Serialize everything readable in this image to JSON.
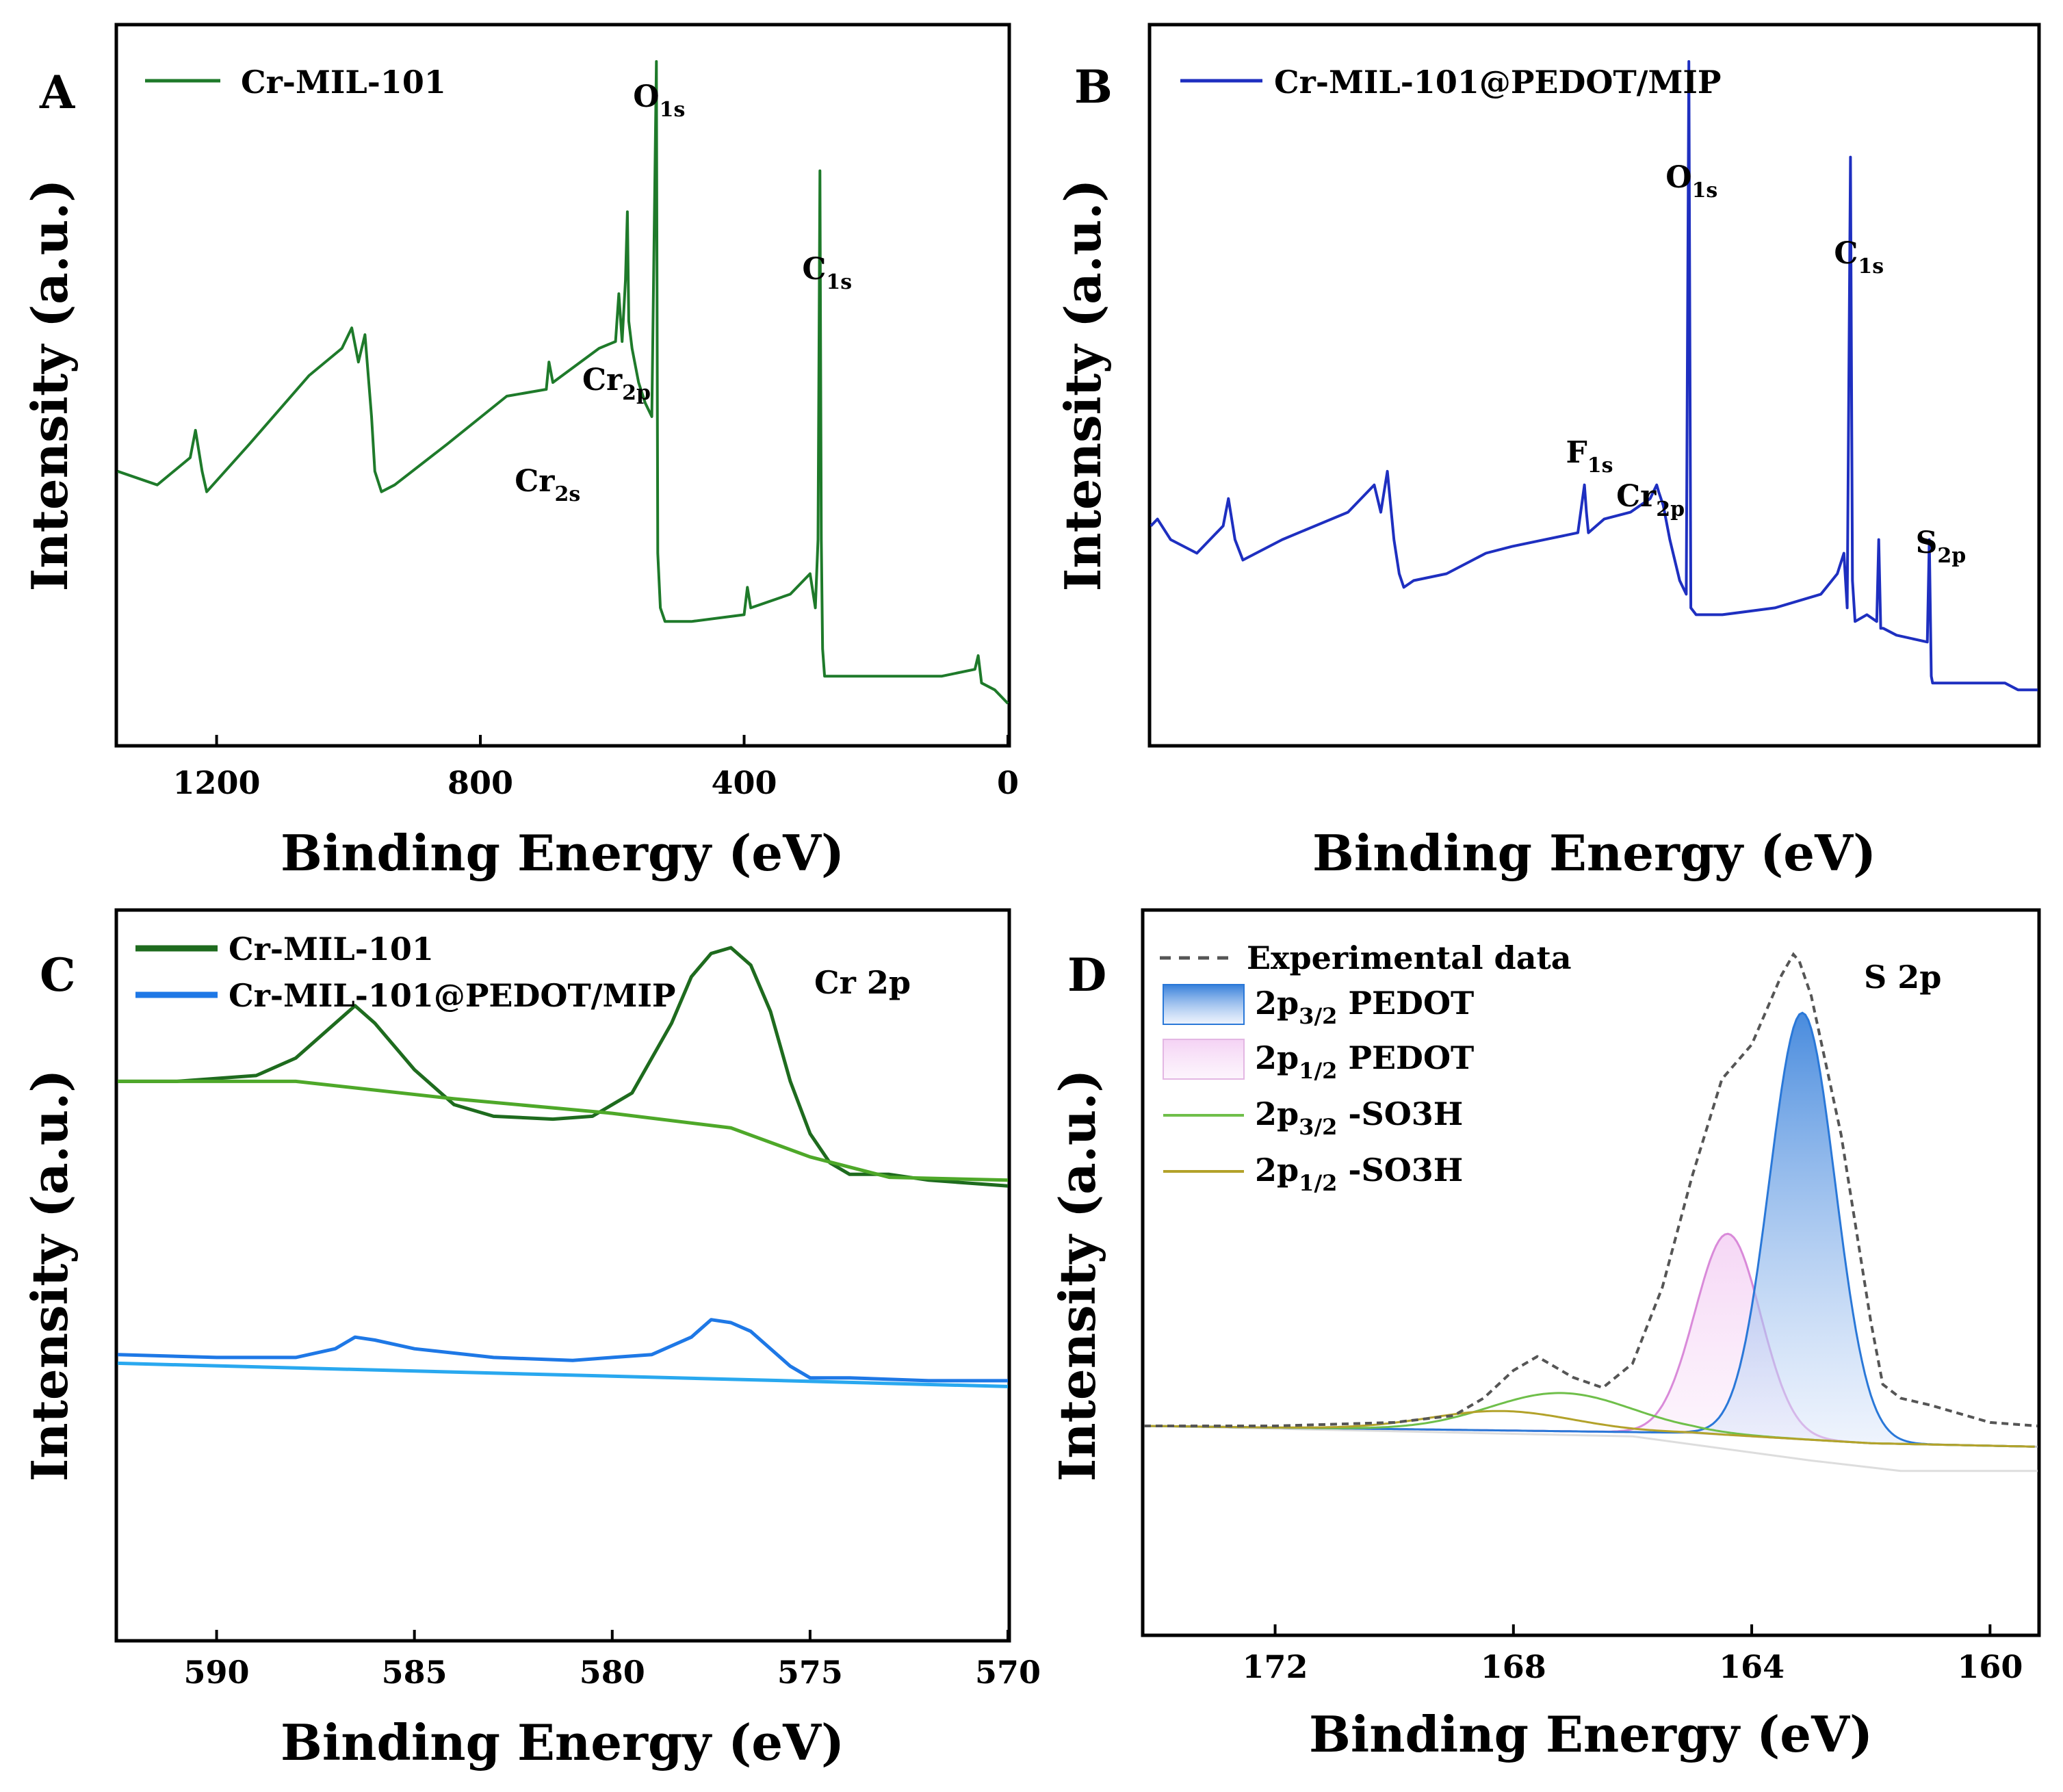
{
  "chart_data": [
    {
      "panel": "A",
      "type": "line",
      "xlabel": "Binding Energy (eV)",
      "ylabel": "Intensity (a.u.)",
      "xlim": [
        1350,
        0
      ],
      "xticks": [
        "1200",
        "800",
        "400",
        "0"
      ],
      "xtick_values": [
        1200,
        800,
        400,
        0
      ],
      "legend": [
        {
          "name": "Cr-MIL-101",
          "color": "#1e7a2a"
        }
      ],
      "annotations": [
        {
          "base": "O",
          "sub": "1s",
          "x": 531
        },
        {
          "base": "C",
          "sub": "1s",
          "x": 285
        },
        {
          "base": "Cr",
          "sub": "2p",
          "x": 577
        },
        {
          "base": "Cr",
          "sub": "2s",
          "x": 696
        }
      ],
      "series": [
        {
          "name": "Cr-MIL-101",
          "color": "#1e7a2a",
          "x": [
            1350,
            1290,
            1240,
            1232,
            1222,
            1215,
            1150,
            1060,
            1010,
            995,
            985,
            975,
            965,
            960,
            950,
            930,
            850,
            760,
            700,
            696,
            690,
            620,
            595,
            590,
            585,
            580,
            577,
            575,
            570,
            560,
            550,
            540,
            533,
            531,
            529,
            527,
            520,
            480,
            400,
            395,
            390,
            330,
            300,
            292,
            288,
            285,
            283,
            281,
            278,
            240,
            100,
            50,
            45,
            40,
            20,
            0
          ],
          "y": [
            40,
            38,
            42,
            46,
            40,
            37,
            44,
            54,
            58,
            61,
            56,
            60,
            48,
            40,
            37,
            38,
            44,
            51,
            52,
            56,
            53,
            58,
            59,
            66,
            59,
            68,
            78,
            62,
            58,
            53,
            50,
            48,
            100,
            28,
            24,
            20,
            18,
            18,
            19,
            23,
            20,
            22,
            25,
            20,
            30,
            84,
            30,
            14,
            10,
            10,
            10,
            11,
            13,
            9,
            8,
            6
          ]
        }
      ]
    },
    {
      "panel": "B",
      "type": "line",
      "xlabel": "Binding Energy (eV)",
      "ylabel": "Intensity (a.u.)",
      "legend": [
        {
          "name": "Cr-MIL-101@PEDOT/MIP",
          "color": "#1e2fc0"
        }
      ],
      "annotations": [
        {
          "base": "O",
          "sub": "1s",
          "x": 531
        },
        {
          "base": "C",
          "sub": "1s",
          "x": 285
        },
        {
          "base": "F",
          "sub": "1s",
          "x": 687
        },
        {
          "base": "Cr",
          "sub": "2p",
          "x": 577
        },
        {
          "base": "S",
          "sub": "2p",
          "x": 165
        }
      ],
      "series": [
        {
          "name": "Cr-MIL-101@PEDOT/MIP",
          "color": "#1e2fc0",
          "x": [
            1350,
            1340,
            1320,
            1280,
            1240,
            1232,
            1222,
            1210,
            1150,
            1050,
            1010,
            1000,
            990,
            980,
            972,
            965,
            950,
            900,
            860,
            840,
            800,
            750,
            700,
            690,
            687,
            684,
            660,
            620,
            590,
            580,
            577,
            570,
            560,
            545,
            535,
            531,
            528,
            520,
            480,
            400,
            330,
            305,
            295,
            290,
            285,
            282,
            278,
            260,
            245,
            242,
            239,
            235,
            215,
            168,
            165,
            162,
            160,
            100,
            50,
            30,
            0
          ],
          "y": [
            32,
            33,
            30,
            28,
            32,
            36,
            30,
            27,
            30,
            34,
            38,
            34,
            40,
            30,
            25,
            23,
            24,
            25,
            27,
            28,
            29,
            30,
            31,
            38,
            34,
            31,
            33,
            34,
            36,
            38,
            37,
            35,
            30,
            24,
            22,
            100,
            20,
            19,
            19,
            20,
            22,
            25,
            28,
            20,
            86,
            24,
            18,
            19,
            18,
            30,
            17,
            17,
            16,
            15,
            30,
            10,
            9,
            9,
            9,
            8,
            8
          ]
        }
      ]
    },
    {
      "panel": "C",
      "type": "line",
      "title": "Cr 2p",
      "xlabel": "Binding Energy (eV)",
      "ylabel": "Intensity (a.u.)",
      "xlim": [
        592.5,
        570
      ],
      "xticks": [
        "590",
        "585",
        "580",
        "575",
        "570"
      ],
      "xtick_values": [
        590,
        585,
        580,
        575,
        570
      ],
      "legend": [
        {
          "name": "Cr-MIL-101",
          "color": "#1e6b1e"
        },
        {
          "name": "Cr-MIL-101@PEDOT/MIP",
          "color": "#1e78e6"
        }
      ],
      "series": [
        {
          "name": "Cr-MIL-101",
          "color": "#1e6b1e",
          "x": [
            592.5,
            591,
            589,
            588,
            587,
            586.5,
            586,
            585,
            584,
            583,
            581.5,
            580.5,
            579.5,
            578.5,
            578,
            577.5,
            577,
            576.5,
            576,
            575.5,
            575,
            574.5,
            574,
            573,
            572,
            570
          ],
          "y": [
            66,
            66,
            67,
            70,
            76,
            79,
            76,
            68,
            62,
            60,
            59.5,
            60,
            64,
            76,
            84,
            88,
            89,
            86,
            78,
            66,
            57,
            52,
            50,
            50,
            49,
            48
          ]
        },
        {
          "name": "Cr-MIL-101 background",
          "color": "#4ea829",
          "x": [
            592.5,
            588,
            584,
            580,
            577,
            575,
            573,
            570
          ],
          "y": [
            66,
            66,
            63,
            60.5,
            58,
            53,
            49.5,
            49
          ]
        },
        {
          "name": "Cr-MIL-101@PEDOT/MIP",
          "color": "#1e78e6",
          "x": [
            592.5,
            590,
            588,
            587,
            586.5,
            586,
            585,
            583,
            581,
            580,
            579,
            578,
            577.5,
            577,
            576.5,
            576,
            575.5,
            575,
            574,
            572,
            570
          ],
          "y": [
            19,
            18.5,
            18.5,
            20,
            22,
            21.5,
            20,
            18.5,
            18,
            18.5,
            19,
            22,
            25,
            24.5,
            23,
            20,
            17,
            15,
            15,
            14.5,
            14.5
          ]
        },
        {
          "name": "Cr-MIL-101@PEDOT/MIP background",
          "color": "#29a8ef",
          "x": [
            592.5,
            570
          ],
          "y": [
            17.5,
            13.5
          ]
        }
      ]
    },
    {
      "panel": "D",
      "type": "area",
      "title": "S 2p",
      "xlabel": "Binding Energy (eV)",
      "ylabel": "Intensity (a.u.)",
      "xlim": [
        174.2,
        159.2
      ],
      "xticks": [
        "172",
        "168",
        "164",
        "160"
      ],
      "xtick_values": [
        172,
        168,
        164,
        160
      ],
      "legend": [
        {
          "name": "Experimental data",
          "color": "#555555"
        },
        {
          "name": "2p3/2 PEDOT",
          "color": "#2a78d8"
        },
        {
          "name": "2p1/2 PEDOT",
          "color": "#d98ad9"
        },
        {
          "name": "2p3/2 -SO3H",
          "color": "#6fbf4a"
        },
        {
          "name": "2p1/2 -SO3H",
          "color": "#b3a22a"
        }
      ],
      "legend_labels": [
        {
          "base": "Experimental data",
          "sub": "",
          "tail": ""
        },
        {
          "base": "2p",
          "sub": "3/2",
          "tail": " PEDOT"
        },
        {
          "base": "2p",
          "sub": "1/2",
          "tail": " PEDOT"
        },
        {
          "base": "2p",
          "sub": "3/2",
          "tail": " -SO3H"
        },
        {
          "base": "2p",
          "sub": "1/2",
          "tail": " -SO3H"
        }
      ],
      "series": [
        {
          "name": "Experimental data",
          "color": "#555555",
          "x": [
            174.2,
            172,
            170,
            169,
            168.5,
            168,
            167.6,
            167,
            166.5,
            166,
            165.5,
            165,
            164.5,
            164,
            163.5,
            163.3,
            163.2,
            163,
            162.5,
            162,
            161.8,
            161.5,
            161,
            160,
            159.2
          ],
          "y": [
            30,
            30,
            30.5,
            31.5,
            34,
            38,
            40,
            37,
            35.5,
            39,
            50,
            66,
            80,
            85,
            95,
            98,
            97,
            92,
            72,
            45,
            36,
            34,
            33,
            30.5,
            30
          ]
        },
        {
          "name": "2p3/2 PEDOT",
          "color": "#2a78d8",
          "center": 163.15,
          "sigma": 0.55,
          "amplitude": 61.5
        },
        {
          "name": "2p1/2 PEDOT",
          "color": "#d98ad9",
          "center": 164.4,
          "sigma": 0.55,
          "amplitude": 29
        },
        {
          "name": "2p3/2 -SO3H",
          "color": "#6fbf4a",
          "center": 167.2,
          "sigma": 1.2,
          "amplitude": 5.5
        },
        {
          "name": "2p1/2 -SO3H",
          "color": "#b3a22a",
          "center": 168.2,
          "sigma": 1.2,
          "amplitude": 2.8
        }
      ],
      "baseline": {
        "x": [
          174.2,
          165,
          162,
          159.2
        ],
        "y": [
          30,
          29,
          27.5,
          27
        ]
      },
      "faint_background": {
        "x": [
          174.2,
          166,
          163,
          161.5,
          159.2
        ],
        "y": [
          30,
          28.5,
          25,
          23.5,
          23.5
        ]
      }
    }
  ]
}
